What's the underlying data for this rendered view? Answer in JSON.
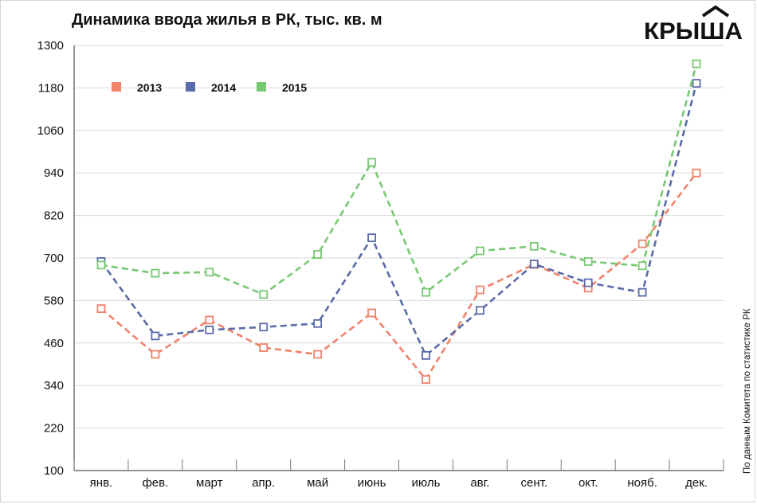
{
  "header": {
    "title": "Динамика ввода жилья в РК, тыс. кв. м",
    "logo_text": "КРЫША",
    "source_note": "По данным Комитета по статистике РК"
  },
  "chart_data": {
    "type": "line",
    "categories": [
      "янв.",
      "фев.",
      "март",
      "апр.",
      "май",
      "июнь",
      "июль",
      "авг.",
      "сент.",
      "окт.",
      "нояб.",
      "дек."
    ],
    "yticks": [
      100,
      220,
      340,
      460,
      580,
      700,
      820,
      940,
      1060,
      1180,
      1300
    ],
    "ylim": [
      100,
      1300
    ],
    "grid": true,
    "legend_position": "top-left",
    "marker": "square",
    "line_style": "dashed",
    "series": [
      {
        "name": "2013",
        "color": "#f0826a",
        "values": [
          557,
          428,
          525,
          447,
          428,
          545,
          357,
          610,
          682,
          615,
          740,
          940
        ]
      },
      {
        "name": "2014",
        "color": "#5a6aa8",
        "values": [
          690,
          480,
          497,
          505,
          515,
          757,
          425,
          552,
          683,
          630,
          603,
          1193
        ]
      },
      {
        "name": "2015",
        "color": "#78c873",
        "values": [
          680,
          657,
          660,
          597,
          710,
          970,
          603,
          720,
          733,
          690,
          678,
          1248
        ]
      }
    ]
  }
}
